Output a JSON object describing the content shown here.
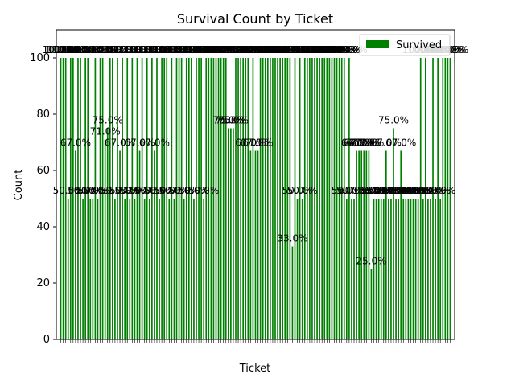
{
  "chart_data": {
    "type": "bar",
    "title": "Survival Count by Ticket",
    "xlabel": "Ticket",
    "ylabel": "Count",
    "ylim": [
      0,
      110
    ],
    "yticks": [
      0,
      20,
      40,
      60,
      80,
      100
    ],
    "grid": false,
    "legend_position": "top-right",
    "series": [
      {
        "name": "Survived",
        "color": "#008000",
        "values": [
          100,
          100,
          100,
          50,
          100,
          100,
          67,
          100,
          100,
          50,
          100,
          100,
          50,
          50,
          100,
          50,
          100,
          100,
          71,
          75,
          100,
          100,
          50,
          100,
          67,
          100,
          50,
          100,
          50,
          100,
          50,
          100,
          67,
          100,
          50,
          100,
          50,
          100,
          67,
          100,
          50,
          100,
          100,
          100,
          50,
          100,
          50,
          100,
          100,
          100,
          50,
          100,
          100,
          100,
          50,
          100,
          100,
          100,
          50,
          100,
          100,
          100,
          100,
          100,
          100,
          100,
          100,
          100,
          75,
          75,
          75,
          100,
          100,
          100,
          100,
          100,
          100,
          67,
          100,
          67,
          67,
          100,
          100,
          100,
          100,
          100,
          100,
          100,
          100,
          100,
          100,
          100,
          100,
          100,
          33,
          100,
          50,
          100,
          50,
          100,
          100,
          100,
          100,
          100,
          100,
          100,
          100,
          100,
          100,
          100,
          100,
          100,
          100,
          100,
          100,
          100,
          50,
          100,
          50,
          50,
          67,
          67,
          67,
          67,
          67,
          67,
          25,
          50,
          50,
          50,
          50,
          50,
          67,
          50,
          50,
          75,
          50,
          50,
          67,
          50,
          50,
          50,
          50,
          50,
          50,
          50,
          100,
          50,
          100,
          50,
          50,
          100,
          50,
          100,
          50,
          100,
          100,
          100,
          100
        ]
      }
    ],
    "y_tick_labels": [
      "0",
      "20",
      "40",
      "60",
      "80",
      "100"
    ]
  }
}
